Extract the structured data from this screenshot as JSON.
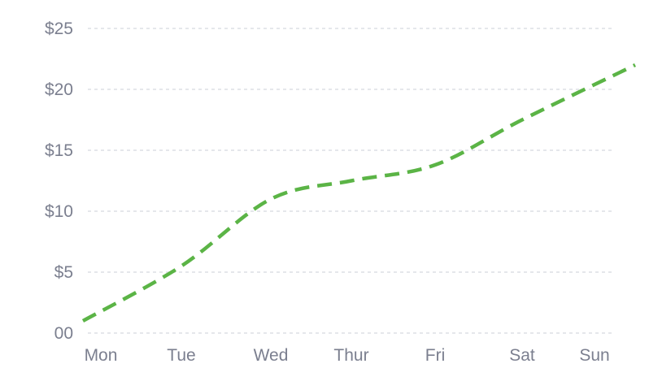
{
  "chart_data": {
    "type": "line",
    "x": [
      "Mon",
      "Tue",
      "Wed",
      "Thur",
      "Fri",
      "Sat",
      "Sun"
    ],
    "y_ticks": [
      {
        "value": 0,
        "label": "00"
      },
      {
        "value": 5,
        "label": "$5"
      },
      {
        "value": 10,
        "label": "$10"
      },
      {
        "value": 15,
        "label": "$15"
      },
      {
        "value": 20,
        "label": "$20"
      },
      {
        "value": 25,
        "label": "$25"
      }
    ],
    "ylim": [
      0,
      25
    ],
    "grid": true,
    "series": [
      {
        "values": [
          1.0,
          5.5,
          11.0,
          12.5,
          13.8,
          17.5,
          22.0
        ],
        "color": "#5bb446",
        "line_style": "dashed"
      }
    ]
  }
}
